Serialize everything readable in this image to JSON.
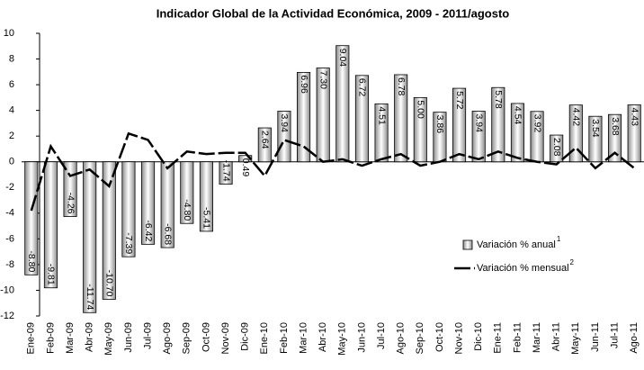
{
  "chart_data": {
    "type": "bar_line",
    "title": "Indicador Global de la Actividad Económica, 2009 - 2011/agosto",
    "categories": [
      "Ene-09",
      "Feb-09",
      "Mar-09",
      "Abr-09",
      "May-09",
      "Jun-09",
      "Jul-09",
      "Ago-09",
      "Sep-09",
      "Oct-09",
      "Nov-09",
      "Dic-09",
      "Ene-10",
      "Feb-10",
      "Mar-10",
      "Abr-10",
      "May-10",
      "Jun-10",
      "Jul-10",
      "Ago-10",
      "Sep-10",
      "Oct-10",
      "Nov-10",
      "Dic-10",
      "Ene-11",
      "Feb-11",
      "Mar-11",
      "Abr-11",
      "May-11",
      "Jun-11",
      "Jul-11",
      "Ago-11"
    ],
    "series": [
      {
        "name": "Variación % anual",
        "superscript": "1",
        "kind": "bar",
        "color": "#bfbfbf",
        "values": [
          -8.8,
          -9.81,
          -4.26,
          -11.74,
          -10.7,
          -7.39,
          -6.42,
          -6.68,
          -4.8,
          -5.41,
          -1.74,
          0.49,
          2.64,
          3.94,
          6.96,
          7.3,
          9.04,
          6.72,
          4.51,
          6.78,
          5.0,
          3.86,
          5.72,
          3.94,
          5.78,
          4.54,
          3.92,
          2.08,
          4.42,
          3.54,
          3.68,
          4.43
        ],
        "value_labels": [
          "-8.80",
          "-9.81",
          "-4.26",
          "-11.74",
          "-10.70",
          "-7.39",
          "-6.42",
          "-6.68",
          "-4.80",
          "-5.41",
          "-1.74",
          "0.49",
          "2.64",
          "3.94",
          "6.96",
          "7.30",
          "9.04",
          "6.72",
          "4.51",
          "6.78",
          "5.00",
          "3.86",
          "5.72",
          "3.94",
          "5.78",
          "4.54",
          "3.92",
          "2.08",
          "4.42",
          "3.54",
          "3.68",
          "4.43"
        ]
      },
      {
        "name": "Variación % mensual",
        "superscript": "2",
        "kind": "line",
        "color": "#000000",
        "values": [
          -3.8,
          1.2,
          -1.1,
          -0.6,
          -1.9,
          2.2,
          1.7,
          -0.5,
          0.8,
          0.6,
          0.7,
          0.7,
          -1.1,
          1.7,
          1.2,
          0.0,
          0.2,
          -0.3,
          0.2,
          0.6,
          -0.3,
          0.0,
          0.6,
          0.2,
          0.8,
          0.3,
          0.0,
          -0.2,
          1.1,
          -0.5,
          0.7,
          -0.5
        ]
      }
    ],
    "ylim": [
      -12,
      10
    ],
    "yticks": [
      -12,
      -10,
      -8,
      -6,
      -4,
      -2,
      0,
      2,
      4,
      6,
      8,
      10
    ]
  }
}
